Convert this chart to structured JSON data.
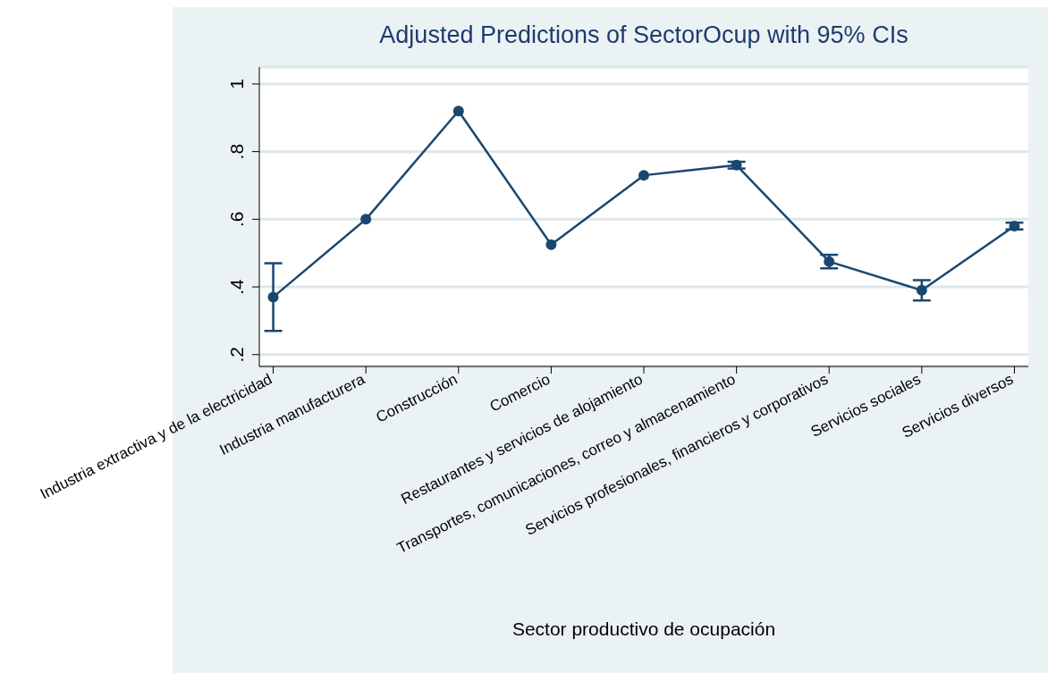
{
  "chart_data": {
    "type": "line",
    "title": "Adjusted Predictions of SectorOcup with 95% CIs",
    "xlabel": "Sector productivo de ocupación",
    "categories": [
      "Industria extractiva y de la electricidad",
      "Industria manufacturera",
      "Construcción",
      "Comercio",
      "Restaurantes y servicios de alojamiento",
      "Transportes, comunicaciones, correo y almacenamiento",
      "Servicios profesionales, financieros y corporativos",
      "Servicios sociales",
      "Servicios diversos"
    ],
    "series": [
      {
        "color": "#1a476f",
        "values": [
          0.37,
          0.6,
          0.92,
          0.525,
          0.73,
          0.76,
          0.475,
          0.39,
          0.58
        ],
        "errors": [
          [
            0.27,
            0.47
          ],
          null,
          null,
          null,
          null,
          [
            0.75,
            0.77
          ],
          [
            0.455,
            0.495
          ],
          [
            0.36,
            0.42
          ],
          [
            0.57,
            0.59
          ]
        ]
      }
    ],
    "ylim": [
      0.165,
      1.05
    ],
    "yticks": [
      {
        "value": 0.2,
        "label": ".2"
      },
      {
        "value": 0.4,
        "label": ".4"
      },
      {
        "value": 0.6,
        "label": ".6"
      },
      {
        "value": 0.8,
        "label": ".8"
      },
      {
        "value": 1,
        "label": "1"
      }
    ],
    "grid": "y",
    "legend": false,
    "marker": "circle",
    "line_style": "solid"
  }
}
